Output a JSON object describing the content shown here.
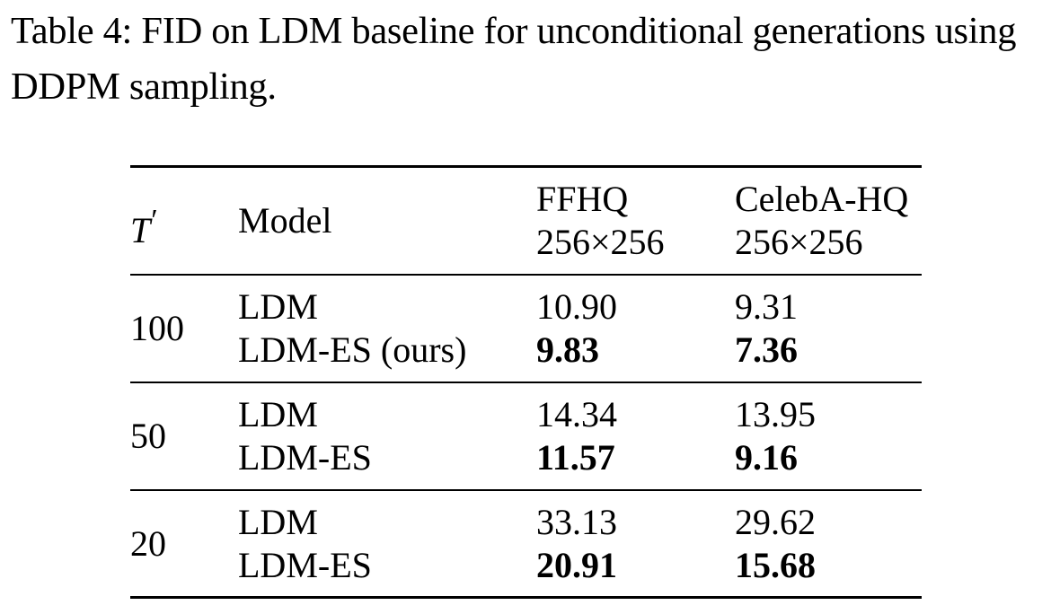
{
  "caption": "Table 4: FID on LDM baseline for unconditional generations using DDPM sampling.",
  "table": {
    "headers": {
      "t_prime": "T",
      "t_prime_mark": "′",
      "model": "Model",
      "ffhq_line1": "FFHQ",
      "ffhq_line2": "256×256",
      "celeba_line1": "CelebA-HQ",
      "celeba_line2": "256×256"
    },
    "groups": [
      {
        "t": "100",
        "rows": [
          {
            "model": "LDM",
            "ffhq": "10.90",
            "celeba": "9.31",
            "bold": false
          },
          {
            "model": "LDM-ES (ours)",
            "ffhq": "9.83",
            "celeba": "7.36",
            "bold": true
          }
        ]
      },
      {
        "t": "50",
        "rows": [
          {
            "model": "LDM",
            "ffhq": "14.34",
            "celeba": "13.95",
            "bold": false
          },
          {
            "model": "LDM-ES",
            "ffhq": "11.57",
            "celeba": "9.16",
            "bold": true
          }
        ]
      },
      {
        "t": "20",
        "rows": [
          {
            "model": "LDM",
            "ffhq": "33.13",
            "celeba": "29.62",
            "bold": false
          },
          {
            "model": "LDM-ES",
            "ffhq": "20.91",
            "celeba": "15.68",
            "bold": true
          }
        ]
      }
    ]
  }
}
